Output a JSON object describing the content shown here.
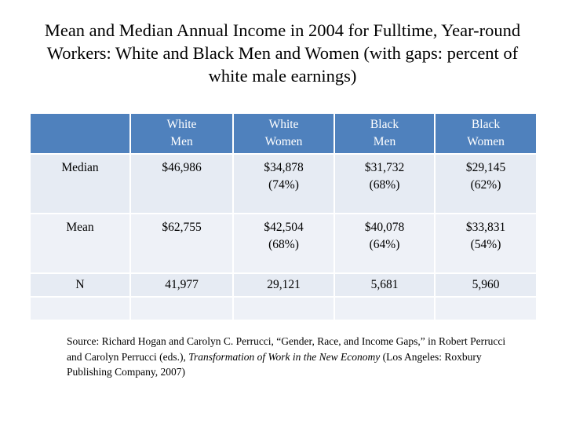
{
  "title": "Mean and Median Annual Income in 2004 for Fulltime, Year-round Workers: White and Black Men and Women (with gaps: percent of white male earnings)",
  "table": {
    "header": [
      "White Men",
      "White Women",
      "Black Men",
      "Black Women"
    ],
    "rows": [
      {
        "label": "Median",
        "cells": [
          [
            "$46,986"
          ],
          [
            "$34,878",
            "(74%)"
          ],
          [
            "$31,732",
            "(68%)"
          ],
          [
            "$29,145",
            "(62%)"
          ]
        ]
      },
      {
        "label": "Mean",
        "cells": [
          [
            "$62,755"
          ],
          [
            "$42,504",
            "(68%)"
          ],
          [
            "$40,078",
            "(64%)"
          ],
          [
            "$33,831",
            "(54%)"
          ]
        ]
      },
      {
        "label": "N",
        "cells": [
          [
            "41,977"
          ],
          [
            "29,121"
          ],
          [
            "5,681"
          ],
          [
            "5,960"
          ]
        ]
      }
    ]
  },
  "source": {
    "text_before": "Source: Richard Hogan and Carolyn C. Perrucci, “Gender, Race, and Income Gaps,” in Robert Perrucci and Carolyn Perrucci (eds.), ",
    "italic": "Transformation of Work in the New Economy",
    "text_after": " (Los Angeles: Roxbury Publishing Company, 2007)"
  }
}
